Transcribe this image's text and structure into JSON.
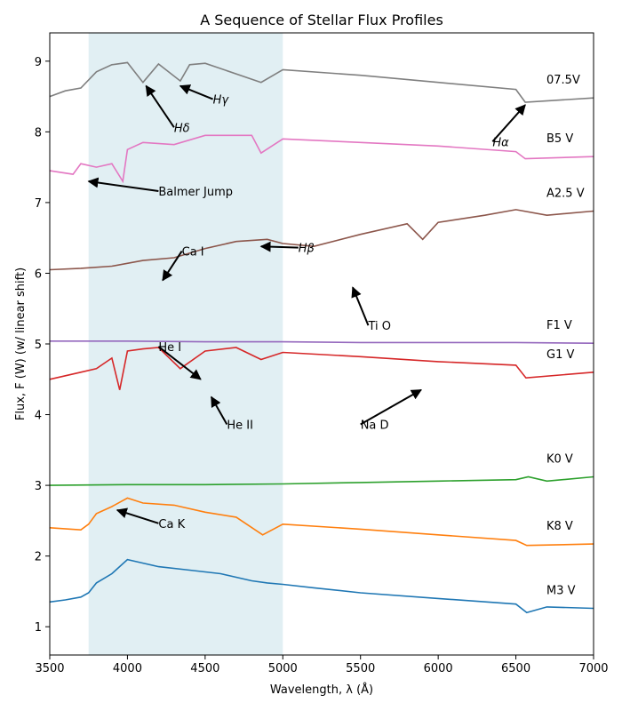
{
  "chart_data": {
    "type": "line",
    "title": "A Sequence of Stellar Flux Profiles",
    "xlabel": "Wavelength, λ (Å)",
    "ylabel": "Flux, F (W) (w/ linear shift)",
    "xlim": [
      3500,
      7000
    ],
    "ylim": [
      0.6,
      9.4
    ],
    "xticks": [
      3500,
      4000,
      4500,
      5000,
      5500,
      6000,
      6500,
      7000
    ],
    "yticks": [
      1,
      2,
      3,
      4,
      5,
      6,
      7,
      8,
      9
    ],
    "grid": false,
    "shaded_region": {
      "x": [
        3750,
        5000
      ],
      "color": "#e1eff3"
    },
    "series": [
      {
        "name": "M3 V",
        "color": "#1f77b4",
        "x": [
          3500,
          3600,
          3700,
          3750,
          3800,
          3900,
          4000,
          4100,
          4200,
          4400,
          4600,
          4800,
          4900,
          5000,
          5200,
          5500,
          6000,
          6500,
          6570,
          6700,
          7000
        ],
        "y": [
          1.35,
          1.38,
          1.42,
          1.48,
          1.62,
          1.75,
          1.95,
          1.9,
          1.85,
          1.8,
          1.75,
          1.65,
          1.62,
          1.6,
          1.55,
          1.48,
          1.4,
          1.32,
          1.2,
          1.28,
          1.26
        ]
      },
      {
        "name": "K8 V",
        "color": "#ff7f0e",
        "x": [
          3500,
          3700,
          3750,
          3800,
          3900,
          4000,
          4100,
          4300,
          4500,
          4700,
          4870,
          5000,
          5500,
          6000,
          6500,
          6570,
          7000
        ],
        "y": [
          2.4,
          2.37,
          2.45,
          2.6,
          2.7,
          2.82,
          2.75,
          2.72,
          2.62,
          2.55,
          2.3,
          2.45,
          2.38,
          2.3,
          2.22,
          2.15,
          2.17
        ]
      },
      {
        "name": "K0 V",
        "color": "#2ca02c",
        "x": [
          3500,
          4000,
          4500,
          5000,
          5500,
          6000,
          6500,
          6580,
          6700,
          7000
        ],
        "y": [
          3.0,
          3.01,
          3.01,
          3.02,
          3.04,
          3.06,
          3.08,
          3.12,
          3.06,
          3.12
        ]
      },
      {
        "name": "G1 V",
        "color": "#d62728",
        "x": [
          3500,
          3600,
          3700,
          3800,
          3900,
          3950,
          4000,
          4100,
          4200,
          4340,
          4500,
          4700,
          4860,
          5000,
          5500,
          6000,
          6500,
          6565,
          7000
        ],
        "y": [
          4.5,
          4.55,
          4.6,
          4.65,
          4.8,
          4.35,
          4.9,
          4.93,
          4.95,
          4.65,
          4.9,
          4.95,
          4.78,
          4.88,
          4.82,
          4.75,
          4.7,
          4.52,
          4.6
        ]
      },
      {
        "name": "F1 V",
        "color": "#9467bd",
        "x": [
          3500,
          4000,
          4500,
          5000,
          5500,
          6000,
          6500,
          7000
        ],
        "y": [
          5.04,
          5.04,
          5.03,
          5.03,
          5.02,
          5.02,
          5.02,
          5.01
        ]
      },
      {
        "name": "A2.5 V",
        "color": "#8c564b",
        "x": [
          3500,
          3700,
          3900,
          4100,
          4300,
          4500,
          4700,
          4900,
          5000,
          5200,
          5500,
          5800,
          5900,
          6000,
          6300,
          6500,
          6700,
          7000
        ],
        "y": [
          6.05,
          6.07,
          6.1,
          6.18,
          6.22,
          6.35,
          6.45,
          6.48,
          6.42,
          6.38,
          6.55,
          6.7,
          6.48,
          6.72,
          6.82,
          6.9,
          6.82,
          6.88
        ]
      },
      {
        "name": "B5 V",
        "color": "#e377c2",
        "x": [
          3500,
          3650,
          3700,
          3800,
          3900,
          3970,
          4000,
          4100,
          4300,
          4500,
          4800,
          4860,
          5000,
          5500,
          6000,
          6500,
          6560,
          7000
        ],
        "y": [
          7.45,
          7.4,
          7.55,
          7.5,
          7.55,
          7.3,
          7.75,
          7.85,
          7.82,
          7.95,
          7.95,
          7.7,
          7.9,
          7.85,
          7.8,
          7.72,
          7.62,
          7.65
        ]
      },
      {
        "name": "07.5V",
        "color": "#7f7f7f",
        "x": [
          3500,
          3600,
          3700,
          3800,
          3900,
          4000,
          4100,
          4200,
          4340,
          4400,
          4500,
          4860,
          5000,
          5500,
          6000,
          6500,
          6560,
          7000
        ],
        "y": [
          8.5,
          8.58,
          8.62,
          8.85,
          8.95,
          8.98,
          8.7,
          8.96,
          8.72,
          8.95,
          8.97,
          8.7,
          8.88,
          8.8,
          8.7,
          8.6,
          8.42,
          8.48
        ]
      }
    ],
    "annotations": [
      {
        "text": "Hδ",
        "text_xy": [
          4300,
          8.0
        ],
        "arrow_to": [
          4120,
          8.65
        ],
        "style": "math"
      },
      {
        "text": "Hγ",
        "text_xy": [
          4550,
          8.4
        ],
        "arrow_to": [
          4340,
          8.65
        ],
        "style": "math"
      },
      {
        "text": "Hα",
        "text_xy": [
          6350,
          7.8
        ],
        "arrow_to": [
          6560,
          8.38
        ],
        "style": "math"
      },
      {
        "text": "Balmer Jump",
        "text_xy": [
          4200,
          7.1
        ],
        "arrow_to": [
          3750,
          7.3
        ]
      },
      {
        "text": "Hβ",
        "text_xy": [
          5100,
          6.3
        ],
        "arrow_to": [
          4860,
          6.38
        ],
        "style": "math"
      },
      {
        "text": "Ca I",
        "text_xy": [
          4350,
          6.25
        ],
        "arrow_to": [
          4227,
          5.9
        ]
      },
      {
        "text": "Ti O",
        "text_xy": [
          5550,
          5.2
        ],
        "arrow_to": [
          5450,
          5.8
        ]
      },
      {
        "text": "He I",
        "text_xy": [
          4200,
          4.9
        ],
        "arrow_to": [
          4471,
          4.5
        ]
      },
      {
        "text": "He II",
        "text_xy": [
          4640,
          3.8
        ],
        "arrow_to": [
          4540,
          4.25
        ]
      },
      {
        "text": "Na D",
        "text_xy": [
          5500,
          3.8
        ],
        "arrow_to": [
          5890,
          4.35
        ]
      },
      {
        "text": "Ca K",
        "text_xy": [
          4200,
          2.4
        ],
        "arrow_to": [
          3934,
          2.65
        ]
      }
    ]
  }
}
